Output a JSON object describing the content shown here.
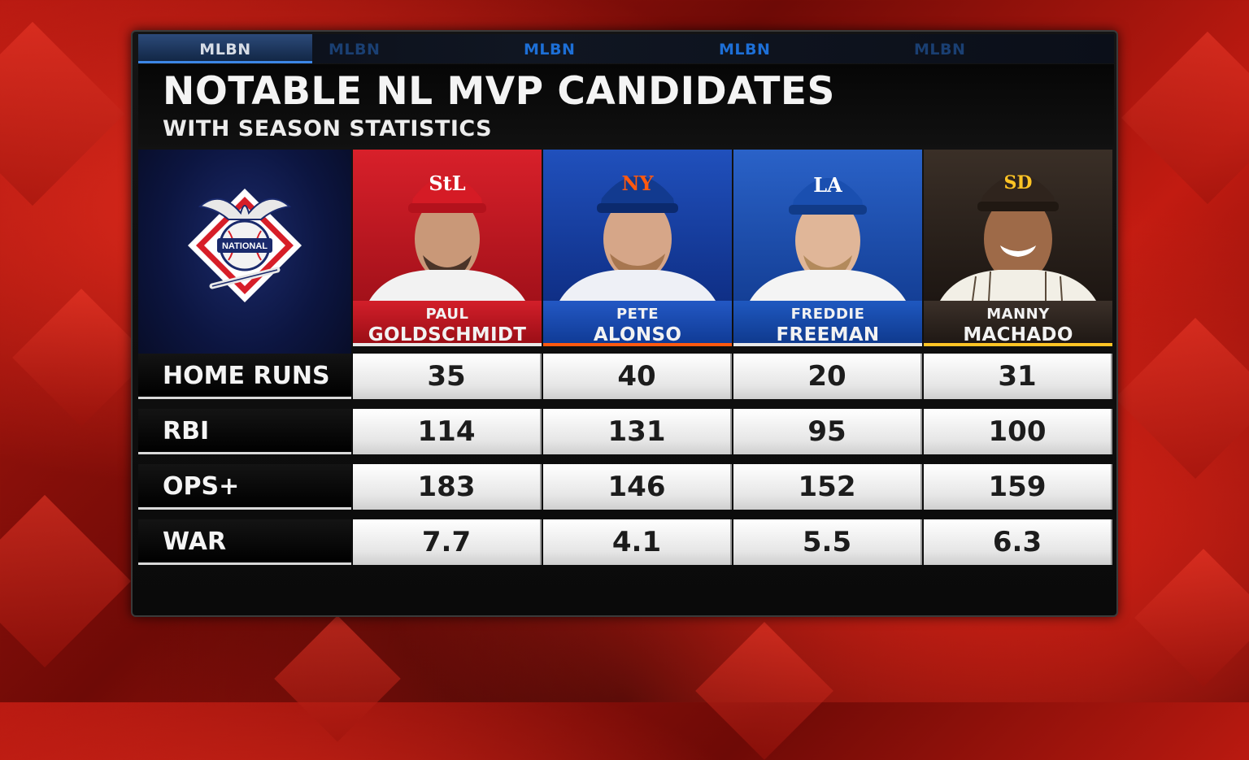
{
  "ticker": {
    "items": [
      "MLBN",
      "MLBN",
      "MLBN",
      "MLBN",
      "MLBN"
    ]
  },
  "header": {
    "title": "NOTABLE NL MVP CANDIDATES",
    "subtitle": "WITH SEASON STATISTICS"
  },
  "logo": {
    "text": "NATIONAL",
    "icon": "national-league-logo-icon"
  },
  "players": [
    {
      "first": "PAUL",
      "last": "GOLDSCHMIDT",
      "cap_icon": "cardinals-cap-icon",
      "team_color": "#c8102e",
      "accent": "#e8e8e8"
    },
    {
      "first": "PETE",
      "last": "ALONSO",
      "cap_icon": "mets-cap-icon",
      "team_color": "#1741a8",
      "accent": "#ff5910"
    },
    {
      "first": "FREDDIE",
      "last": "FREEMAN",
      "cap_icon": "dodgers-cap-icon",
      "team_color": "#1955b8",
      "accent": "#e8e8e8"
    },
    {
      "first": "MANNY",
      "last": "MACHADO",
      "cap_icon": "padres-cap-icon",
      "team_color": "#2f241d",
      "accent": "#ffc425"
    }
  ],
  "stats": [
    {
      "label": "HOME RUNS",
      "values": [
        "35",
        "40",
        "20",
        "31"
      ]
    },
    {
      "label": "RBI",
      "values": [
        "114",
        "131",
        "95",
        "100"
      ]
    },
    {
      "label": "OPS+",
      "values": [
        "183",
        "146",
        "152",
        "159"
      ]
    },
    {
      "label": "WAR",
      "values": [
        "7.7",
        "4.1",
        "5.5",
        "6.3"
      ]
    }
  ]
}
